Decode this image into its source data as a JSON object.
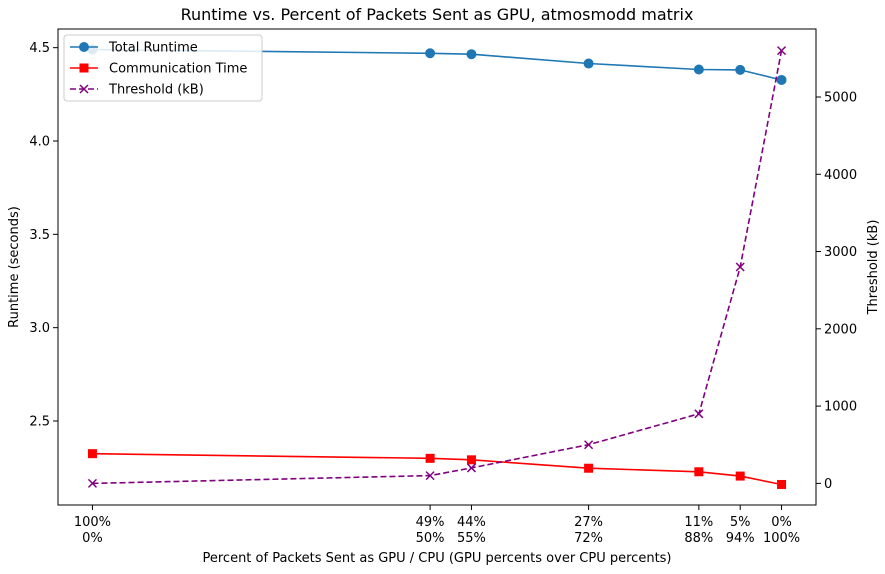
{
  "chart_data": {
    "type": "line",
    "title": "Runtime vs. Percent of Packets Sent as GPU, atmosmodd matrix",
    "xlabel": "Percent of Packets Sent as GPU / CPU (GPU percents over CPU percents)",
    "ylabel": "Runtime (seconds)",
    "ylabel_right": "Threshold (kB)",
    "x": [
      0,
      49,
      55,
      72,
      88,
      94,
      100
    ],
    "x_tick_labels": [
      {
        "x": 0,
        "gpu": "100%",
        "cpu": "0%"
      },
      {
        "x": 49,
        "gpu": "49%",
        "cpu": "50%"
      },
      {
        "x": 55,
        "gpu": "44%",
        "cpu": "55%"
      },
      {
        "x": 72,
        "gpu": "27%",
        "cpu": "72%"
      },
      {
        "x": 88,
        "gpu": "11%",
        "cpu": "88%"
      },
      {
        "x": 94,
        "gpu": "5%",
        "cpu": "94%"
      },
      {
        "x": 100,
        "gpu": "0%",
        "cpu": "100%"
      }
    ],
    "xlim": [
      -5,
      105
    ],
    "ylim": [
      2.05,
      4.6
    ],
    "yticks": [
      "2.5",
      "3.0",
      "3.5",
      "4.0",
      "4.5"
    ],
    "ylim_right": [
      -280,
      5880
    ],
    "yticks_right": [
      "0",
      "1000",
      "2000",
      "3000",
      "4000",
      "5000"
    ],
    "series": [
      {
        "name": "Total Runtime",
        "axis": "left",
        "color": "#1f77b4",
        "marker": "circle",
        "dash": "solid",
        "values": [
          4.49,
          4.47,
          4.465,
          4.415,
          4.383,
          4.381,
          4.327
        ]
      },
      {
        "name": "Communication Time",
        "axis": "left",
        "color": "#ff0000",
        "marker": "square",
        "dash": "solid",
        "values": [
          2.325,
          2.3,
          2.292,
          2.247,
          2.228,
          2.205,
          2.16
        ]
      },
      {
        "name": "Threshold (kB)",
        "axis": "right",
        "color": "#800080",
        "marker": "x",
        "dash": "dashed",
        "values": [
          0,
          100,
          200,
          500,
          900,
          2800,
          5600
        ]
      }
    ],
    "legend_position": "top-left"
  }
}
